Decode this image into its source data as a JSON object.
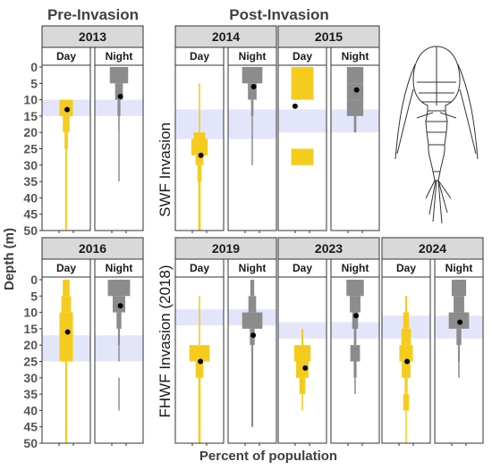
{
  "titles": {
    "pre": "Pre-Invasion",
    "post": "Post-Invasion"
  },
  "axes": {
    "ylabel": "Depth (m)",
    "xlabel": "Percent of population",
    "y_ticks": [
      "0",
      "5",
      "10",
      "15",
      "20",
      "25",
      "30",
      "35",
      "40",
      "45",
      "50"
    ]
  },
  "invasion_labels": {
    "swf": "SWF Invasion",
    "fhwf": "FHWF Invasion (2018)"
  },
  "strip_labels": {
    "day": "Day",
    "night": "Night"
  },
  "chart_data": {
    "type": "kite (depth distribution)",
    "y_range": [
      0,
      50
    ],
    "y_reversed": true,
    "y_unit": "m",
    "colors": {
      "day": "#f5cc1e",
      "night": "#8c8c8c",
      "band": "#e3e6fb",
      "mean": "#000000"
    },
    "panels": [
      {
        "year": "2013",
        "band": [
          10,
          15
        ],
        "day": {
          "mean": 13,
          "mean_x": 0.02,
          "bins": [
            [
              10,
              15,
              0.28
            ],
            [
              15,
              20,
              0.14
            ],
            [
              20,
              25,
              0.07
            ],
            [
              25,
              50,
              0.035
            ]
          ]
        },
        "night": {
          "mean": 9,
          "mean_x": 0.03,
          "bins": [
            [
              0,
              5,
              0.38
            ],
            [
              5,
              10,
              0.16
            ],
            [
              10,
              15,
              0.06
            ],
            [
              15,
              20,
              0.03
            ],
            [
              20,
              25,
              0.02
            ],
            [
              25,
              30,
              0.01
            ],
            [
              30,
              35,
              0.01
            ]
          ]
        }
      },
      {
        "year": "2014",
        "band": [
          13,
          22
        ],
        "day": {
          "mean": 27,
          "mean_x": 0.03,
          "bins": [
            [
              5,
              20,
              0.03
            ],
            [
              20,
              22,
              0.24
            ],
            [
              22,
              27,
              0.34
            ],
            [
              27,
              30,
              0.16
            ],
            [
              30,
              35,
              0.08
            ],
            [
              35,
              50,
              0.05
            ]
          ]
        },
        "night": {
          "mean": 6,
          "mean_x": 0.03,
          "bins": [
            [
              0,
              5,
              0.42
            ],
            [
              5,
              10,
              0.18
            ],
            [
              10,
              15,
              0.05
            ],
            [
              15,
              20,
              0.02
            ],
            [
              20,
              30,
              0.01
            ]
          ]
        }
      },
      {
        "year": "2015",
        "band": [
          13,
          20
        ],
        "day": {
          "mean": 12,
          "mean_x": -0.15,
          "bins": [
            [
              0,
              10,
              0.46
            ],
            [
              25,
              30,
              0.46
            ]
          ]
        },
        "night": {
          "mean": 7,
          "mean_x": 0.03,
          "bins": [
            [
              0,
              5,
              0.34
            ],
            [
              5,
              10,
              0.34
            ],
            [
              10,
              15,
              0.34
            ],
            [
              15,
              20,
              0.05
            ]
          ]
        }
      },
      {
        "year": "2016",
        "band": [
          17,
          25
        ],
        "day": {
          "mean": 16,
          "mean_x": 0.03,
          "bins": [
            [
              0,
              5,
              0.14
            ],
            [
              5,
              10,
              0.2
            ],
            [
              10,
              25,
              0.28
            ],
            [
              25,
              50,
              0.04
            ]
          ]
        },
        "night": {
          "mean": 8,
          "mean_x": 0.03,
          "bins": [
            [
              0,
              5,
              0.46
            ],
            [
              5,
              10,
              0.26
            ],
            [
              10,
              15,
              0.1
            ],
            [
              15,
              20,
              0.04
            ],
            [
              20,
              25,
              0.02
            ],
            [
              30,
              35,
              0.01
            ],
            [
              35,
              40,
              0.01
            ]
          ]
        }
      },
      {
        "year": "2019",
        "band": [
          9,
          14
        ],
        "day": {
          "mean": 25,
          "mean_x": 0.02,
          "bins": [
            [
              5,
              20,
              0.03
            ],
            [
              20,
              25,
              0.42
            ],
            [
              25,
              30,
              0.16
            ],
            [
              30,
              50,
              0.05
            ]
          ]
        },
        "night": {
          "mean": 17,
          "mean_x": 0.02,
          "bins": [
            [
              0,
              5,
              0.08
            ],
            [
              5,
              10,
              0.16
            ],
            [
              10,
              15,
              0.42
            ],
            [
              15,
              20,
              0.1
            ],
            [
              20,
              45,
              0.04
            ]
          ]
        }
      },
      {
        "year": "2023",
        "band": [
          13,
          18
        ],
        "day": {
          "mean": 27,
          "mean_x": 0.06,
          "bins": [
            [
              15,
              20,
              0.04
            ],
            [
              20,
              25,
              0.34
            ],
            [
              25,
              30,
              0.26
            ],
            [
              30,
              35,
              0.12
            ],
            [
              35,
              40,
              0.03
            ]
          ]
        },
        "night": {
          "mean": 11,
          "mean_x": 0.02,
          "bins": [
            [
              0,
              5,
              0.36
            ],
            [
              5,
              10,
              0.22
            ],
            [
              10,
              15,
              0.12
            ],
            [
              15,
              20,
              0.05
            ],
            [
              20,
              25,
              0.2
            ],
            [
              25,
              30,
              0.06
            ],
            [
              30,
              35,
              0.02
            ]
          ]
        }
      },
      {
        "year": "2024",
        "band": [
          11,
          18
        ],
        "day": {
          "mean": 25,
          "mean_x": 0.02,
          "bins": [
            [
              5,
              10,
              0.04
            ],
            [
              10,
              15,
              0.12
            ],
            [
              15,
              20,
              0.2
            ],
            [
              20,
              25,
              0.28
            ],
            [
              25,
              30,
              0.18
            ],
            [
              30,
              35,
              0.06
            ],
            [
              35,
              40,
              0.12
            ],
            [
              40,
              50,
              0.02
            ]
          ]
        },
        "night": {
          "mean": 13,
          "mean_x": 0.02,
          "bins": [
            [
              0,
              5,
              0.3
            ],
            [
              5,
              10,
              0.22
            ],
            [
              10,
              15,
              0.42
            ],
            [
              15,
              20,
              0.1
            ],
            [
              20,
              25,
              0.04
            ],
            [
              25,
              30,
              0.02
            ]
          ]
        }
      }
    ]
  },
  "illustration": "copepod-illustration"
}
